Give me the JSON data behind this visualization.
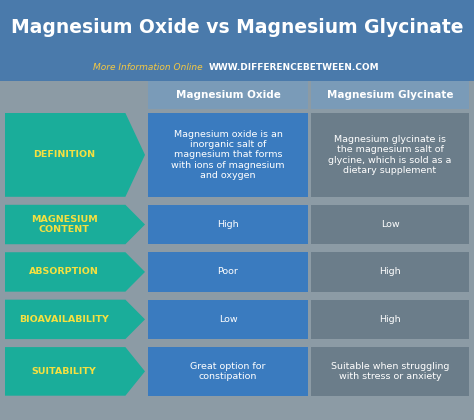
{
  "title": "Magnesium Oxide vs Magnesium Glycinate",
  "subtitle_normal": "More Information Online  ",
  "subtitle_bold": "WWW.DIFFERENCEBETWEEN.COM",
  "bg_color": "#8c9ba5",
  "title_bg": "#4a7aab",
  "header_bg": "#7a9bb8",
  "col1_bg": "#3a7bbf",
  "col2_bg": "#6b7d8a",
  "arrow_color": "#1aad9a",
  "title_color": "#ffffff",
  "subtitle_normal_color": "#f5c842",
  "subtitle_bold_color": "#ffffff",
  "header_text_color": "#ffffff",
  "col1_text_color": "#ffffff",
  "col2_text_color": "#ffffff",
  "arrow_text_color": "#f5e040",
  "col_headers": [
    "Magnesium Oxide",
    "Magnesium Glycinate"
  ],
  "rows": [
    {
      "label": "DEFINITION",
      "col1": "Magnesium oxide is an\ninorganic salt of\nmagnesium that forms\nwith ions of magnesium\nand oxygen",
      "col2": "Magnesium glycinate is\nthe magnesium salt of\nglycine, which is sold as a\ndietary supplement"
    },
    {
      "label": "MAGNESIUM\nCONTENT",
      "col1": "High",
      "col2": "Low"
    },
    {
      "label": "ABSORPTION",
      "col1": "Poor",
      "col2": "High"
    },
    {
      "label": "BIOAVAILABILITY",
      "col1": "Low",
      "col2": "High"
    },
    {
      "label": "SUITABILITY",
      "col1": "Great option for\nconstipation",
      "col2": "Suitable when struggling\nwith stress or anxiety"
    }
  ],
  "fig_w": 4.74,
  "fig_h": 4.2,
  "dpi": 100
}
